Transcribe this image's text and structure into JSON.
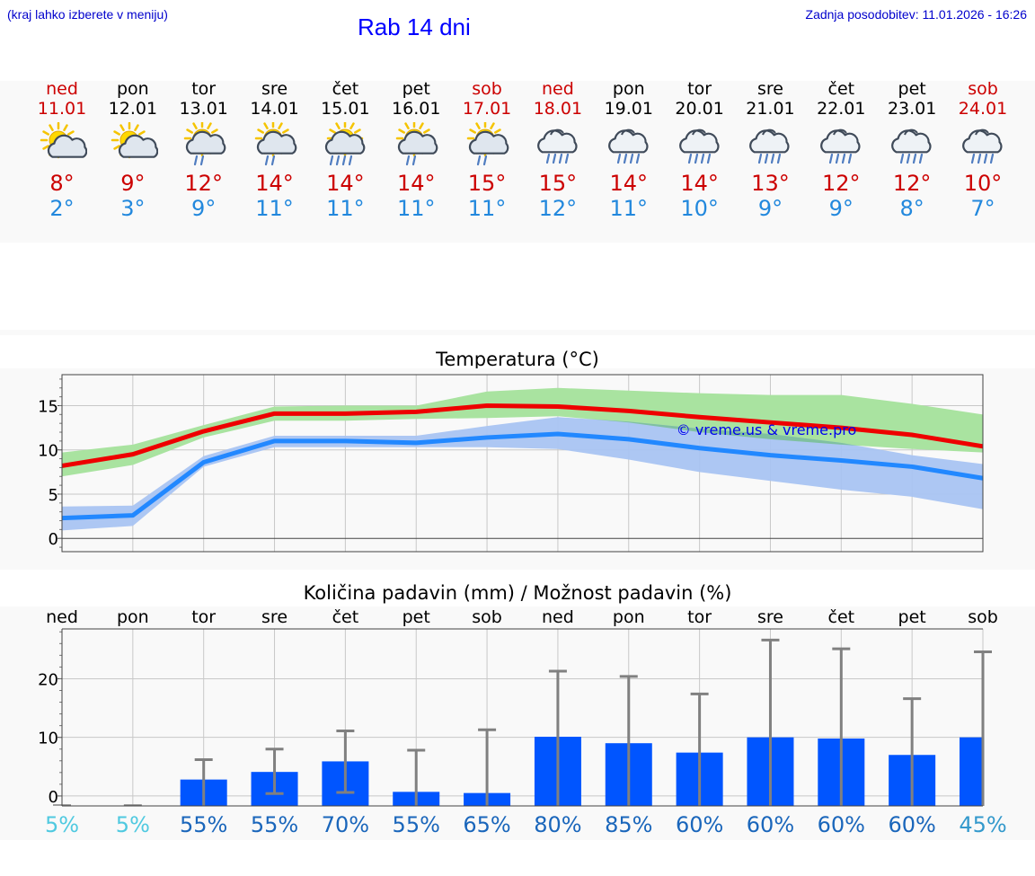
{
  "header": {
    "left_note": "(kraj lahko izberete v meniju)",
    "title": "Rab 14 dni",
    "updated": "Zadnja posodobitev: 11.01.2026 - 16:26"
  },
  "days": [
    {
      "name": "ned",
      "date": "11.01",
      "weekend": true,
      "icon": "sun-cloud-icon",
      "tmax": "8°",
      "tmin": "2°"
    },
    {
      "name": "pon",
      "date": "12.01",
      "weekend": false,
      "icon": "sun-cloud-icon",
      "tmax": "9°",
      "tmin": "3°"
    },
    {
      "name": "tor",
      "date": "13.01",
      "weekend": false,
      "icon": "sun-rain-icon",
      "tmax": "12°",
      "tmin": "9°"
    },
    {
      "name": "sre",
      "date": "14.01",
      "weekend": false,
      "icon": "sun-rain-icon",
      "tmax": "14°",
      "tmin": "11°"
    },
    {
      "name": "čet",
      "date": "15.01",
      "weekend": false,
      "icon": "sun-heavy-rain-icon",
      "tmax": "14°",
      "tmin": "11°"
    },
    {
      "name": "pet",
      "date": "16.01",
      "weekend": false,
      "icon": "sun-rain-icon",
      "tmax": "14°",
      "tmin": "11°"
    },
    {
      "name": "sob",
      "date": "17.01",
      "weekend": true,
      "icon": "sun-rain-icon",
      "tmax": "15°",
      "tmin": "11°"
    },
    {
      "name": "ned",
      "date": "18.01",
      "weekend": true,
      "icon": "cloud-rain-icon",
      "tmax": "15°",
      "tmin": "12°"
    },
    {
      "name": "pon",
      "date": "19.01",
      "weekend": false,
      "icon": "cloud-rain-icon",
      "tmax": "14°",
      "tmin": "11°"
    },
    {
      "name": "tor",
      "date": "20.01",
      "weekend": false,
      "icon": "cloud-rain-icon",
      "tmax": "14°",
      "tmin": "10°"
    },
    {
      "name": "sre",
      "date": "21.01",
      "weekend": false,
      "icon": "cloud-rain-icon",
      "tmax": "13°",
      "tmin": "9°"
    },
    {
      "name": "čet",
      "date": "22.01",
      "weekend": false,
      "icon": "cloud-rain-icon",
      "tmax": "12°",
      "tmin": "9°"
    },
    {
      "name": "pet",
      "date": "23.01",
      "weekend": false,
      "icon": "cloud-rain-icon",
      "tmax": "12°",
      "tmin": "8°"
    },
    {
      "name": "sob",
      "date": "24.01",
      "weekend": true,
      "icon": "cloud-rain-icon",
      "tmax": "10°",
      "tmin": "7°"
    }
  ],
  "colors": {
    "max_line": "#ee0000",
    "max_band": "#a9e3a0",
    "min_line": "#2288ff",
    "min_band": "#a9c4f2",
    "overlap": "#7fc0a0",
    "bar": "#0055ff",
    "errbar": "#808080",
    "pct_low": "#4fc9e0",
    "pct_mid": "#1a66bb",
    "pct_last": "#3399cc"
  },
  "chart_data": [
    {
      "type": "line",
      "title": "Temperatura (°C)",
      "categories": [
        "ned",
        "pon",
        "tor",
        "sre",
        "čet",
        "pet",
        "sob",
        "ned",
        "pon",
        "tor",
        "sre",
        "čet",
        "pet",
        "sob"
      ],
      "ylim": [
        -1.5,
        18.5
      ],
      "yticks": [
        0,
        5,
        10,
        15
      ],
      "watermark": "© vreme.us & vreme.pro",
      "series": [
        {
          "name": "max",
          "values": [
            8.2,
            9.5,
            12.1,
            14.1,
            14.1,
            14.3,
            15.0,
            14.9,
            14.4,
            13.7,
            13.1,
            12.5,
            11.7,
            10.4
          ],
          "band_low": [
            7.0,
            8.3,
            11.4,
            13.3,
            13.3,
            13.5,
            13.6,
            13.8,
            13.1,
            12.0,
            11.2,
            10.6,
            10.1,
            9.7
          ],
          "band_high": [
            9.7,
            10.6,
            12.8,
            14.9,
            15.0,
            15.0,
            16.6,
            17.0,
            16.7,
            16.4,
            16.2,
            16.2,
            15.2,
            14.0
          ]
        },
        {
          "name": "min",
          "values": [
            2.3,
            2.6,
            8.6,
            11.0,
            11.0,
            10.8,
            11.4,
            11.8,
            11.2,
            10.2,
            9.4,
            8.8,
            8.1,
            6.8
          ],
          "band_low": [
            0.9,
            1.4,
            8.1,
            10.3,
            10.3,
            10.3,
            10.3,
            10.1,
            8.9,
            7.5,
            6.5,
            5.5,
            4.7,
            3.3
          ],
          "band_high": [
            3.6,
            3.7,
            9.3,
            11.6,
            11.6,
            11.6,
            12.7,
            13.7,
            13.2,
            12.4,
            11.8,
            10.8,
            9.4,
            8.4
          ]
        }
      ]
    },
    {
      "type": "bar",
      "title": "Količina padavin (mm) / Možnost padavin (%)",
      "categories": [
        "ned",
        "pon",
        "tor",
        "sre",
        "čet",
        "pet",
        "sob",
        "ned",
        "pon",
        "tor",
        "sre",
        "čet",
        "pet",
        "sob"
      ],
      "ylim": [
        -1.7,
        28.5
      ],
      "yticks": [
        0,
        10,
        20
      ],
      "values": [
        0,
        0,
        2.8,
        4.1,
        5.9,
        0.7,
        0.5,
        10.1,
        9.0,
        7.4,
        10.0,
        9.8,
        7.0,
        10.0
      ],
      "err_low": [
        0,
        0,
        0,
        0.4,
        0.6,
        0,
        0,
        0,
        0,
        0,
        0,
        0,
        0,
        0
      ],
      "err_high": [
        0,
        0,
        6.2,
        8.0,
        11.1,
        7.8,
        11.3,
        21.3,
        20.4,
        17.4,
        26.6,
        25.1,
        16.6,
        24.6
      ],
      "chance_labels": [
        "5%",
        "5%",
        "55%",
        "55%",
        "70%",
        "55%",
        "65%",
        "80%",
        "85%",
        "60%",
        "60%",
        "60%",
        "60%",
        "45%"
      ]
    }
  ]
}
